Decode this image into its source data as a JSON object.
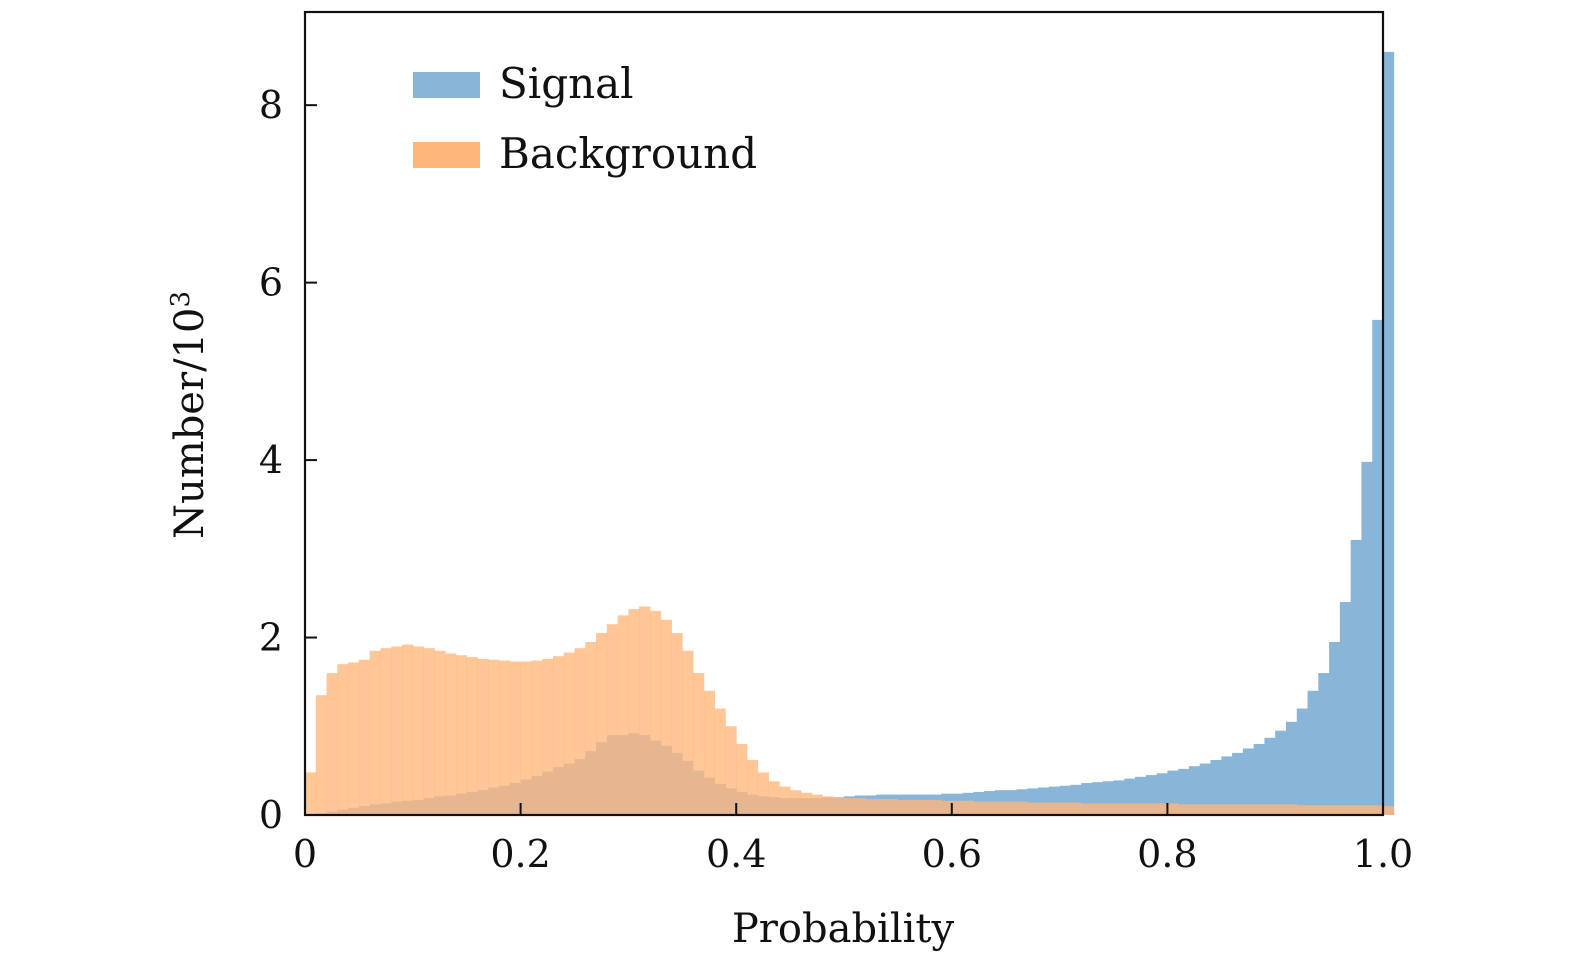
{
  "chart_data": {
    "type": "bar",
    "subtype": "overlapping histogram",
    "xlabel": "Probability",
    "ylabel": "Number/10",
    "ylabel_superscript": "3",
    "xlim": [
      0,
      1.0
    ],
    "ylim": [
      0,
      9.05
    ],
    "xticks": [
      0,
      0.2,
      0.4,
      0.6,
      0.8,
      1.0
    ],
    "xtick_labels": [
      "0",
      "0.2",
      "0.4",
      "0.6",
      "0.8",
      "1.0"
    ],
    "yticks": [
      0,
      2,
      4,
      6,
      8
    ],
    "ytick_labels": [
      "0",
      "2",
      "4",
      "6",
      "8"
    ],
    "bin_width": 0.01,
    "grid": false,
    "legend_position": "top-left",
    "series": [
      {
        "name": "Signal",
        "color": "#89b6d8",
        "values": [
          0.0,
          0.02,
          0.04,
          0.06,
          0.08,
          0.1,
          0.12,
          0.13,
          0.15,
          0.16,
          0.17,
          0.19,
          0.21,
          0.22,
          0.24,
          0.26,
          0.28,
          0.31,
          0.33,
          0.36,
          0.4,
          0.44,
          0.49,
          0.54,
          0.58,
          0.63,
          0.72,
          0.82,
          0.9,
          0.9,
          0.92,
          0.9,
          0.84,
          0.78,
          0.7,
          0.61,
          0.5,
          0.42,
          0.35,
          0.3,
          0.26,
          0.23,
          0.21,
          0.2,
          0.19,
          0.19,
          0.19,
          0.19,
          0.2,
          0.2,
          0.21,
          0.22,
          0.22,
          0.23,
          0.23,
          0.23,
          0.23,
          0.23,
          0.23,
          0.24,
          0.24,
          0.25,
          0.26,
          0.27,
          0.28,
          0.28,
          0.29,
          0.3,
          0.31,
          0.32,
          0.33,
          0.34,
          0.36,
          0.37,
          0.38,
          0.39,
          0.41,
          0.43,
          0.45,
          0.47,
          0.5,
          0.52,
          0.55,
          0.58,
          0.62,
          0.66,
          0.7,
          0.75,
          0.8,
          0.87,
          0.95,
          1.05,
          1.2,
          1.4,
          1.6,
          1.95,
          2.4,
          3.1,
          3.98,
          5.58,
          8.6
        ]
      },
      {
        "name": "Background",
        "color": "#ffb67a",
        "values": [
          0.48,
          1.35,
          1.6,
          1.7,
          1.72,
          1.75,
          1.85,
          1.88,
          1.9,
          1.92,
          1.9,
          1.88,
          1.85,
          1.82,
          1.8,
          1.78,
          1.76,
          1.75,
          1.74,
          1.73,
          1.73,
          1.74,
          1.76,
          1.79,
          1.83,
          1.88,
          1.95,
          2.05,
          2.15,
          2.25,
          2.32,
          2.35,
          2.3,
          2.2,
          2.05,
          1.85,
          1.6,
          1.4,
          1.2,
          1.0,
          0.8,
          0.62,
          0.48,
          0.38,
          0.32,
          0.28,
          0.25,
          0.23,
          0.21,
          0.2,
          0.19,
          0.19,
          0.18,
          0.18,
          0.18,
          0.17,
          0.17,
          0.17,
          0.17,
          0.16,
          0.16,
          0.16,
          0.15,
          0.15,
          0.15,
          0.15,
          0.15,
          0.14,
          0.14,
          0.14,
          0.14,
          0.14,
          0.13,
          0.13,
          0.13,
          0.13,
          0.13,
          0.13,
          0.13,
          0.13,
          0.13,
          0.12,
          0.12,
          0.12,
          0.12,
          0.12,
          0.12,
          0.12,
          0.12,
          0.12,
          0.12,
          0.12,
          0.11,
          0.11,
          0.11,
          0.11,
          0.11,
          0.11,
          0.11,
          0.11,
          0.1
        ]
      }
    ]
  }
}
